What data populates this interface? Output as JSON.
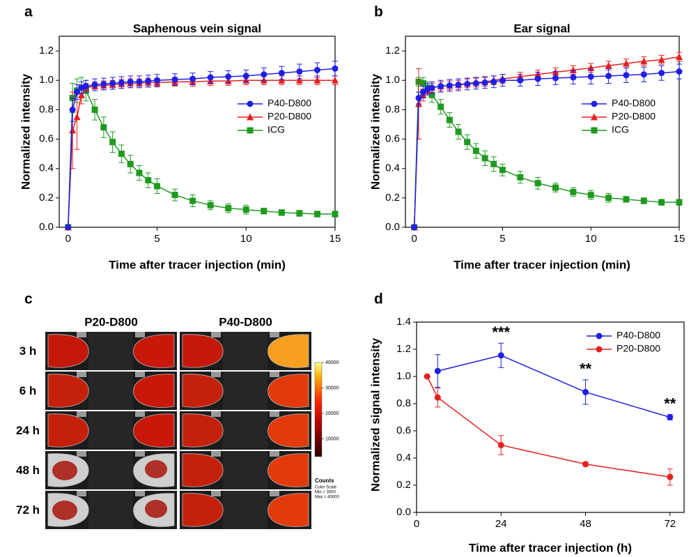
{
  "chart_data": [
    {
      "type": "line",
      "panel_label": "a",
      "title": "Saphenous vein signal",
      "x_label": "Time after tracer injection (min)",
      "y_label": "Normalized intensity",
      "xlim": [
        -0.5,
        15
      ],
      "xticks": [
        0,
        5,
        10,
        15
      ],
      "ylim": [
        0,
        1.3
      ],
      "yticks": [
        {
          "value": 0,
          "label": "0.0"
        },
        0.2,
        0.4,
        0.6,
        0.8,
        {
          "value": 1,
          "label": "1.0"
        },
        1.2
      ],
      "legend": "center right",
      "x": [
        0,
        0.25,
        0.5,
        0.75,
        1,
        1.5,
        2,
        2.5,
        3,
        3.5,
        4,
        4.5,
        5,
        6,
        7,
        8,
        9,
        10,
        11,
        12,
        13,
        14,
        15
      ],
      "series": [
        {
          "name": "P40-D800",
          "color": "#1f1fe6",
          "marker": "circle",
          "values": [
            0,
            0.8,
            0.92,
            0.95,
            0.96,
            0.97,
            0.975,
            0.98,
            0.985,
            0.99,
            0.99,
            0.995,
            1.0,
            1.005,
            1.01,
            1.02,
            1.025,
            1.03,
            1.04,
            1.05,
            1.06,
            1.07,
            1.08
          ],
          "errors": [
            null,
            0.08,
            0.05,
            0.04,
            0.04,
            0.04,
            0.04,
            0.04,
            0.04,
            0.04,
            0.04,
            0.04,
            0.04,
            0.04,
            0.04,
            0.04,
            0.04,
            0.04,
            0.045,
            0.045,
            0.05,
            0.05,
            0.05
          ]
        },
        {
          "name": "P20-D800",
          "color": "#e61f1f",
          "marker": "triangle",
          "values": [
            0,
            0.66,
            0.75,
            0.9,
            0.95,
            0.96,
            0.965,
            0.97,
            0.975,
            0.98,
            0.98,
            0.985,
            0.985,
            0.99,
            0.99,
            0.995,
            0.995,
            1.0,
            1.0,
            1.0,
            1.0,
            1.0,
            1.0
          ],
          "errors": [
            null,
            0.26,
            0.22,
            0.06,
            0.03,
            0.03,
            0.03,
            0.03,
            0.03,
            0.03,
            0.03,
            0.03,
            0.03,
            0.03,
            0.03,
            0.03,
            0.03,
            0.03,
            0.03,
            0.03,
            0.03,
            0.03,
            0.03
          ]
        },
        {
          "name": "ICG",
          "color": "#1f9a1f",
          "marker": "square",
          "values": [
            0,
            0.88,
            0.93,
            0.95,
            0.93,
            0.8,
            0.68,
            0.58,
            0.5,
            0.43,
            0.37,
            0.32,
            0.28,
            0.22,
            0.18,
            0.15,
            0.13,
            0.12,
            0.11,
            0.1,
            0.095,
            0.09,
            0.09
          ],
          "errors": [
            null,
            0.1,
            0.08,
            0.07,
            0.07,
            0.07,
            0.07,
            0.07,
            0.06,
            0.06,
            0.05,
            0.05,
            0.05,
            0.04,
            0.04,
            0.03,
            0.03,
            0.03,
            0.02,
            0.02,
            0.02,
            0.02,
            0.02
          ]
        }
      ]
    },
    {
      "type": "line",
      "panel_label": "b",
      "title": "Ear signal",
      "x_label": "Time after tracer injection (min)",
      "y_label": "Normalized intensity",
      "xlim": [
        -0.5,
        15
      ],
      "xticks": [
        0,
        5,
        10,
        15
      ],
      "ylim": [
        0,
        1.3
      ],
      "yticks": [
        {
          "value": 0,
          "label": "0.0"
        },
        0.2,
        0.4,
        0.6,
        0.8,
        {
          "value": 1,
          "label": "1.0"
        },
        1.2
      ],
      "legend": "center right",
      "x": [
        0,
        0.25,
        0.5,
        0.75,
        1,
        1.5,
        2,
        2.5,
        3,
        3.5,
        4,
        4.5,
        5,
        6,
        7,
        8,
        9,
        10,
        11,
        12,
        13,
        14,
        15
      ],
      "series": [
        {
          "name": "P40-D800",
          "color": "#1f1fe6",
          "marker": "circle",
          "values": [
            0,
            0.88,
            0.92,
            0.94,
            0.95,
            0.96,
            0.965,
            0.97,
            0.975,
            0.98,
            0.985,
            0.99,
            1.0,
            1.0,
            1.01,
            1.015,
            1.02,
            1.025,
            1.03,
            1.035,
            1.04,
            1.05,
            1.06
          ],
          "errors": [
            null,
            0.04,
            0.04,
            0.04,
            0.04,
            0.04,
            0.04,
            0.04,
            0.04,
            0.04,
            0.04,
            0.04,
            0.04,
            0.04,
            0.045,
            0.045,
            0.045,
            0.05,
            0.05,
            0.05,
            0.05,
            0.05,
            0.05
          ]
        },
        {
          "name": "P20-D800",
          "color": "#e61f1f",
          "marker": "triangle",
          "values": [
            0,
            0.84,
            0.9,
            0.93,
            0.95,
            0.96,
            0.965,
            0.97,
            0.98,
            0.985,
            0.99,
            1.0,
            1.01,
            1.025,
            1.04,
            1.055,
            1.07,
            1.085,
            1.1,
            1.115,
            1.13,
            1.14,
            1.16
          ],
          "errors": [
            null,
            0.24,
            0.04,
            0.03,
            0.03,
            0.03,
            0.03,
            0.03,
            0.03,
            0.03,
            0.03,
            0.03,
            0.03,
            0.03,
            0.03,
            0.03,
            0.03,
            0.03,
            0.03,
            0.03,
            0.03,
            0.03,
            0.03
          ]
        },
        {
          "name": "ICG",
          "color": "#1f9a1f",
          "marker": "square",
          "values": [
            0,
            0.99,
            0.98,
            0.95,
            0.9,
            0.82,
            0.73,
            0.65,
            0.58,
            0.52,
            0.47,
            0.43,
            0.39,
            0.34,
            0.3,
            0.27,
            0.24,
            0.22,
            0.2,
            0.19,
            0.18,
            0.17,
            0.17
          ],
          "errors": [
            null,
            0.03,
            0.04,
            0.04,
            0.05,
            0.05,
            0.05,
            0.05,
            0.05,
            0.05,
            0.05,
            0.05,
            0.04,
            0.04,
            0.04,
            0.03,
            0.03,
            0.03,
            0.03,
            0.02,
            0.02,
            0.02,
            0.02
          ]
        }
      ]
    },
    {
      "type": "image",
      "panel_label": "c",
      "columns": [
        "P20-D800",
        "P40-D800"
      ],
      "rows": [
        "3 h",
        "6 h",
        "24 h",
        "48 h",
        "72 h"
      ],
      "colorbar": {
        "clim": [
          3000,
          40000
        ],
        "ticks": [
          40000,
          30000,
          20000,
          10000
        ],
        "title": "Counts",
        "notes": [
          "Color Scale",
          "Min = 3000",
          "Max = 40000"
        ]
      }
    },
    {
      "type": "line",
      "panel_label": "d",
      "x_label": "Time after tracer injection (h)",
      "y_label": "Normalized signal intensity",
      "xlim": [
        0,
        76
      ],
      "xticks": [
        0,
        24,
        48,
        72
      ],
      "ylim": [
        0,
        1.4
      ],
      "yticks": [
        {
          "value": 0,
          "label": "0.0"
        },
        0.2,
        0.4,
        0.6,
        0.8,
        {
          "value": 1,
          "label": "1.0"
        },
        1.2,
        1.4
      ],
      "legend": "upper right",
      "annotations": [
        "***",
        "**",
        "**"
      ],
      "series": [
        {
          "name": "P40-D800",
          "color": "#1f1fe6",
          "marker": "circle",
          "x": [
            6,
            24,
            48,
            72
          ],
          "values": [
            1.04,
            1.155,
            0.885,
            0.7
          ],
          "errors": [
            0.12,
            0.09,
            0.09,
            0.02
          ]
        },
        {
          "name": "P20-D800",
          "color": "#e61f1f",
          "marker": "circle",
          "x": [
            3,
            6,
            24,
            48,
            72
          ],
          "values": [
            1.0,
            0.845,
            0.495,
            0.355,
            0.26
          ],
          "errors": [
            null,
            0.07,
            0.07,
            0.015,
            0.06
          ]
        }
      ]
    }
  ]
}
